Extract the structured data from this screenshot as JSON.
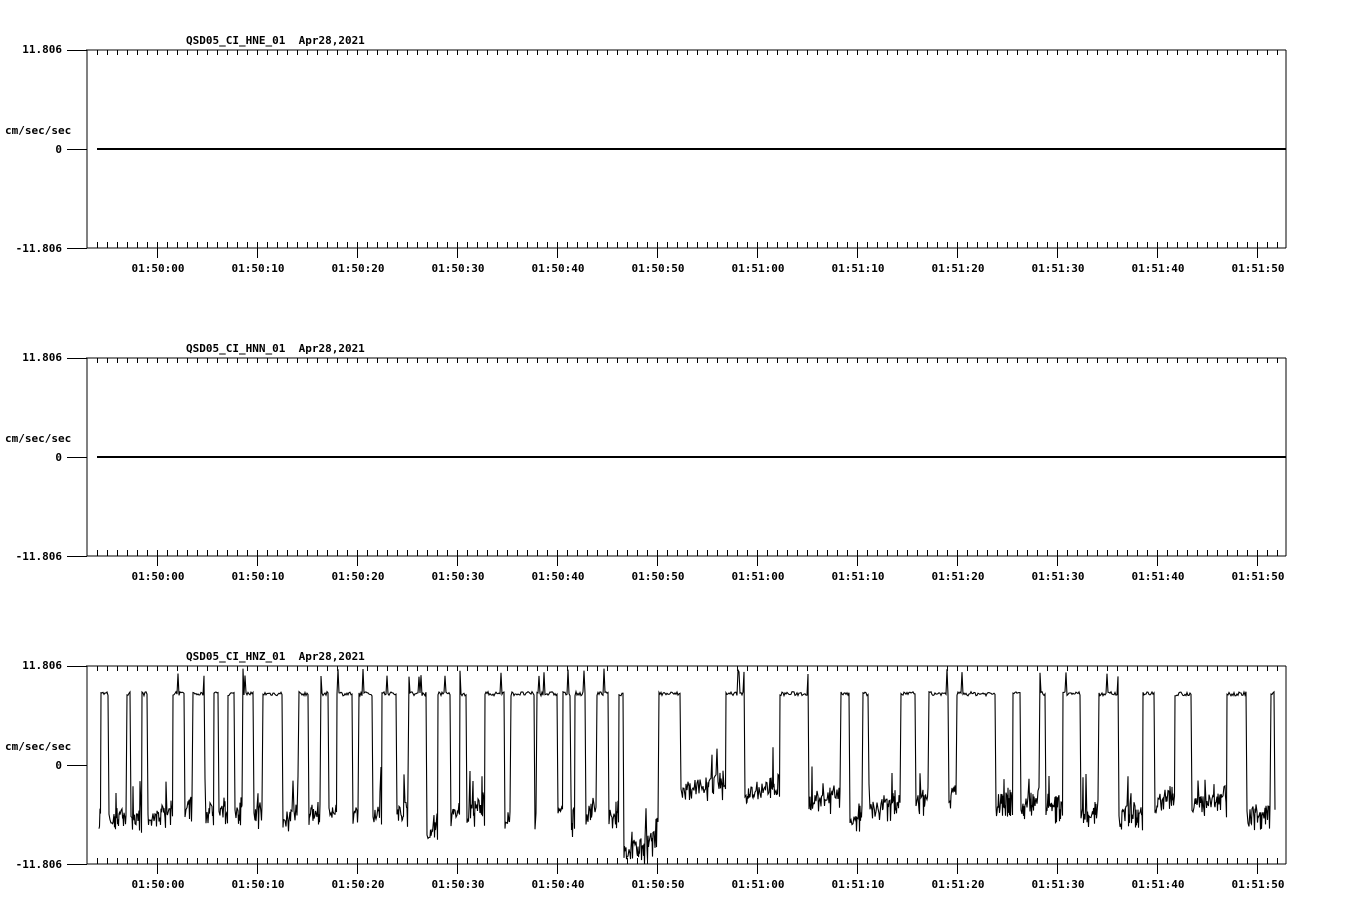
{
  "chart_data": [
    {
      "type": "line",
      "title": "QSD05_CI_HNE_01  Apr28,2021",
      "station": "QSD05_CI_HNE_01",
      "date": "Apr28,2021",
      "ylabel": "cm/sec/sec",
      "ylim": [
        -11.806,
        11.806
      ],
      "y_ticks": [
        "11.806",
        "0",
        "-11.806"
      ],
      "x_ticks": [
        "01:50:00",
        "01:50:10",
        "01:50:20",
        "01:50:30",
        "01:50:40",
        "01:50:50",
        "01:51:00",
        "01:51:10",
        "01:51:20",
        "01:51:30",
        "01:51:40",
        "01:51:50"
      ],
      "description": "flat trace at 0 for the whole window",
      "values": [
        [
          -7.1,
          0
        ],
        [
          111.9,
          0
        ]
      ]
    },
    {
      "type": "line",
      "title": "QSD05_CI_HNN_01  Apr28,2021",
      "station": "QSD05_CI_HNN_01",
      "date": "Apr28,2021",
      "ylabel": "cm/sec/sec",
      "ylim": [
        -11.806,
        11.806
      ],
      "y_ticks": [
        "11.806",
        "0",
        "-11.806"
      ],
      "x_ticks": [
        "01:50:00",
        "01:50:10",
        "01:50:20",
        "01:50:30",
        "01:50:40",
        "01:50:50",
        "01:51:00",
        "01:51:10",
        "01:51:20",
        "01:51:30",
        "01:51:40",
        "01:51:50"
      ],
      "description": "flat trace at 0 for the whole window",
      "values": [
        [
          -7.1,
          0
        ],
        [
          111.9,
          0
        ]
      ]
    },
    {
      "type": "line",
      "title": "QSD05_CI_HNZ_01  Apr28,2021",
      "station": "QSD05_CI_HNZ_01",
      "date": "Apr28,2021",
      "ylabel": "cm/sec/sec",
      "ylim": [
        -11.806,
        11.806
      ],
      "y_ticks": [
        "11.806",
        "0",
        "-11.806"
      ],
      "x_ticks": [
        "01:50:00",
        "01:50:10",
        "01:50:20",
        "01:50:30",
        "01:50:40",
        "01:50:50",
        "01:51:00",
        "01:51:10",
        "01:51:20",
        "01:51:30",
        "01:51:40",
        "01:51:50"
      ],
      "description": "square-wave-like switching between a clipped plateau near +10 and a noisy baseline near -5 to -7; deep dip near -10.5 at ~01:50:47",
      "x_unit": "seconds relative to 01:50:00",
      "segments": [
        [
          -5.8,
          "lo",
          -6.5
        ],
        [
          -5.6,
          "hi"
        ],
        [
          -4.8,
          "lo",
          -6.8
        ],
        [
          -3.0,
          "hi"
        ],
        [
          -2.6,
          "lo",
          -7
        ],
        [
          -1.5,
          "hi"
        ],
        [
          -0.9,
          "lo",
          -6.4
        ],
        [
          1.6,
          "hi"
        ],
        [
          2.8,
          "lo",
          -6
        ],
        [
          3.6,
          "hi"
        ],
        [
          4.8,
          "lo",
          -6.4
        ],
        [
          5.7,
          "hi"
        ],
        [
          6.2,
          "lo",
          -6.2
        ],
        [
          7.1,
          "hi"
        ],
        [
          7.8,
          "lo",
          -5.8
        ],
        [
          8.6,
          "hi"
        ],
        [
          9.7,
          "lo",
          -6.3
        ],
        [
          10.6,
          "hi"
        ],
        [
          12.6,
          "lo",
          -6.8
        ],
        [
          14.2,
          "hi"
        ],
        [
          15.2,
          "lo",
          -6.2
        ],
        [
          16.4,
          "hi"
        ],
        [
          17.2,
          "lo",
          -6
        ],
        [
          18.0,
          "hi"
        ],
        [
          19.6,
          "lo",
          -6.8
        ],
        [
          20.2,
          "hi"
        ],
        [
          21.6,
          "lo",
          -6
        ],
        [
          22.5,
          "hi"
        ],
        [
          24.0,
          "lo",
          -6.2
        ],
        [
          25.2,
          "hi"
        ],
        [
          27.0,
          "lo",
          -8
        ],
        [
          28.1,
          "hi"
        ],
        [
          29.4,
          "lo",
          -6.4
        ],
        [
          30.3,
          "hi"
        ],
        [
          31.0,
          "lo",
          -6
        ],
        [
          32.8,
          "hi"
        ],
        [
          34.8,
          "lo",
          -7
        ],
        [
          35.4,
          "hi"
        ],
        [
          37.8,
          "lo",
          -7.4
        ],
        [
          38.0,
          "hi"
        ],
        [
          40.1,
          "lo",
          -6.4
        ],
        [
          40.6,
          "hi"
        ],
        [
          41.4,
          "lo",
          -7.2
        ],
        [
          41.8,
          "hi"
        ],
        [
          42.9,
          "lo",
          -6
        ],
        [
          44.0,
          "hi"
        ],
        [
          45.2,
          "lo",
          -6.2
        ],
        [
          46.2,
          "hi"
        ],
        [
          46.7,
          "lo",
          -10.4
        ],
        [
          50.2,
          "hi"
        ],
        [
          52.4,
          "lo",
          -3.2
        ],
        [
          56.9,
          "hi"
        ],
        [
          58.8,
          "lo",
          -3.6
        ],
        [
          62.3,
          "hi"
        ],
        [
          65.2,
          "lo",
          -4.5
        ],
        [
          68.4,
          "hi"
        ],
        [
          69.3,
          "lo",
          -6.6
        ],
        [
          70.6,
          "hi"
        ],
        [
          71.2,
          "lo",
          -5.4
        ],
        [
          74.4,
          "hi"
        ],
        [
          75.9,
          "lo",
          -4.8
        ],
        [
          77.2,
          "hi"
        ],
        [
          79.2,
          "lo",
          -4.2
        ],
        [
          80.0,
          "hi"
        ],
        [
          83.9,
          "lo",
          -4.8
        ],
        [
          85.6,
          "hi"
        ],
        [
          86.4,
          "lo",
          -5.2
        ],
        [
          88.3,
          "hi"
        ],
        [
          88.9,
          "lo",
          -5.6
        ],
        [
          90.6,
          "hi"
        ],
        [
          92.4,
          "lo",
          -6.3
        ],
        [
          94.2,
          "hi"
        ],
        [
          96.2,
          "lo",
          -6.4
        ],
        [
          98.6,
          "hi"
        ],
        [
          99.8,
          "lo",
          -4.8
        ],
        [
          101.8,
          "hi"
        ],
        [
          103.5,
          "lo",
          -5
        ],
        [
          107.0,
          "hi"
        ],
        [
          109.0,
          "lo",
          -6.4
        ],
        [
          111.4,
          "hi"
        ],
        [
          111.8,
          "lo",
          -5.4
        ]
      ]
    }
  ],
  "panels": [
    {
      "title": "QSD05_CI_HNE_01  Apr28,2021",
      "y_max": "11.806",
      "y_zero": "0",
      "y_min": "-11.806",
      "unit": "cm/sec/sec"
    },
    {
      "title": "QSD05_CI_HNN_01  Apr28,2021",
      "y_max": "11.806",
      "y_zero": "0",
      "y_min": "-11.806",
      "unit": "cm/sec/sec"
    },
    {
      "title": "QSD05_CI_HNZ_01  Apr28,2021",
      "y_max": "11.806",
      "y_zero": "0",
      "y_min": "-11.806",
      "unit": "cm/sec/sec"
    }
  ],
  "x_ticks": [
    "01:50:00",
    "01:50:10",
    "01:50:20",
    "01:50:30",
    "01:50:40",
    "01:50:50",
    "01:51:00",
    "01:51:10",
    "01:51:20",
    "01:51:30",
    "01:51:40",
    "01:51:50"
  ]
}
